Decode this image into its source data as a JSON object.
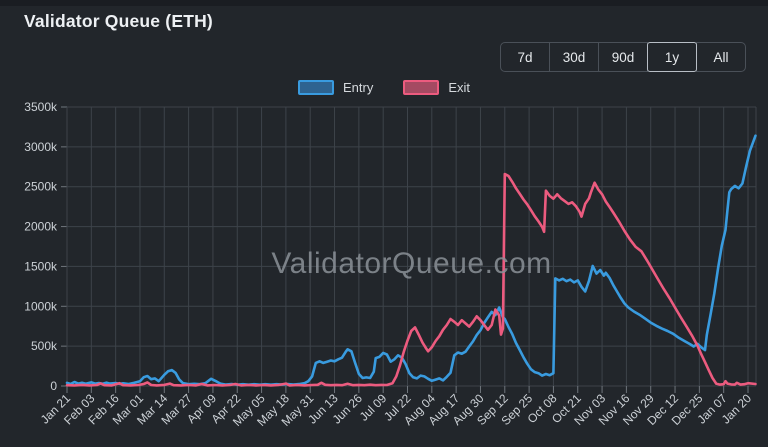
{
  "header": {
    "title": "Validator Queue (ETH)"
  },
  "range_buttons": {
    "options": [
      "7d",
      "30d",
      "90d",
      "1y",
      "All"
    ],
    "selected": "1y"
  },
  "watermark": "ValidatorQueue.com",
  "chart_data": {
    "type": "line",
    "title": "Validator Queue (ETH)",
    "unit": "thousands of ETH (k)",
    "grid": true,
    "legend_position": "top-center",
    "ylim": [
      0,
      3500
    ],
    "ytick_step": 500,
    "ytick_labels": [
      "0",
      "500k",
      "1000k",
      "1500k",
      "2000k",
      "2500k",
      "3000k",
      "3500k"
    ],
    "x_tick_interval_days": 13,
    "x_domain_days": [
      0,
      368
    ],
    "x_labels": [
      "Jan 21",
      "Feb 03",
      "Feb 16",
      "Mar 01",
      "Mar 14",
      "Mar 27",
      "Apr 09",
      "Apr 22",
      "May 05",
      "May 18",
      "May 31",
      "Jun 13",
      "Jun 26",
      "Jul 09",
      "Jul 22",
      "Aug 04",
      "Aug 17",
      "Aug 30",
      "Sep 12",
      "Sep 25",
      "Oct 08",
      "Oct 21",
      "Nov 03",
      "Nov 16",
      "Nov 29",
      "Dec 12",
      "Dec 25",
      "Jan 07",
      "Jan 20"
    ],
    "colors": {
      "background": "#22262b",
      "grid": "#3d434a",
      "tick": "#6f757c",
      "tick_text": "#ccd1d6",
      "watermark": "#8b9198",
      "entry": "#399bdf",
      "exit": "#ec5b7f"
    },
    "series": [
      {
        "name": "Entry",
        "color": "#399bdf",
        "swatch_fill": "#2e6390",
        "points": [
          [
            0,
            40
          ],
          [
            2,
            25
          ],
          [
            4,
            50
          ],
          [
            6,
            30
          ],
          [
            8,
            40
          ],
          [
            10,
            28
          ],
          [
            13,
            45
          ],
          [
            15,
            30
          ],
          [
            17,
            38
          ],
          [
            19,
            28
          ],
          [
            21,
            42
          ],
          [
            23,
            30
          ],
          [
            26,
            38
          ],
          [
            28,
            26
          ],
          [
            30,
            34
          ],
          [
            33,
            25
          ],
          [
            36,
            40
          ],
          [
            39,
            60
          ],
          [
            41,
            110
          ],
          [
            43,
            125
          ],
          [
            45,
            85
          ],
          [
            47,
            95
          ],
          [
            49,
            60
          ],
          [
            52,
            140
          ],
          [
            54,
            185
          ],
          [
            56,
            200
          ],
          [
            58,
            165
          ],
          [
            60,
            80
          ],
          [
            62,
            35
          ],
          [
            65,
            22
          ],
          [
            68,
            28
          ],
          [
            71,
            22
          ],
          [
            74,
            35
          ],
          [
            77,
            90
          ],
          [
            80,
            55
          ],
          [
            82,
            30
          ],
          [
            85,
            18
          ],
          [
            88,
            24
          ],
          [
            91,
            16
          ],
          [
            94,
            22
          ],
          [
            97,
            16
          ],
          [
            100,
            22
          ],
          [
            103,
            16
          ],
          [
            106,
            22
          ],
          [
            109,
            16
          ],
          [
            112,
            22
          ],
          [
            115,
            18
          ],
          [
            118,
            24
          ],
          [
            121,
            18
          ],
          [
            124,
            24
          ],
          [
            127,
            35
          ],
          [
            129,
            60
          ],
          [
            131,
            120
          ],
          [
            133,
            290
          ],
          [
            135,
            310
          ],
          [
            137,
            290
          ],
          [
            139,
            305
          ],
          [
            141,
            320
          ],
          [
            143,
            310
          ],
          [
            145,
            335
          ],
          [
            147,
            355
          ],
          [
            149,
            430
          ],
          [
            150,
            460
          ],
          [
            152,
            435
          ],
          [
            154,
            290
          ],
          [
            156,
            150
          ],
          [
            158,
            100
          ],
          [
            160,
            108
          ],
          [
            162,
            100
          ],
          [
            164,
            180
          ],
          [
            165,
            350
          ],
          [
            167,
            365
          ],
          [
            169,
            415
          ],
          [
            171,
            395
          ],
          [
            173,
            305
          ],
          [
            175,
            335
          ],
          [
            177,
            385
          ],
          [
            179,
            355
          ],
          [
            181,
            275
          ],
          [
            183,
            160
          ],
          [
            185,
            110
          ],
          [
            187,
            95
          ],
          [
            189,
            130
          ],
          [
            191,
            120
          ],
          [
            193,
            90
          ],
          [
            195,
            65
          ],
          [
            197,
            80
          ],
          [
            199,
            95
          ],
          [
            201,
            70
          ],
          [
            203,
            115
          ],
          [
            205,
            165
          ],
          [
            207,
            385
          ],
          [
            209,
            420
          ],
          [
            211,
            405
          ],
          [
            213,
            430
          ],
          [
            215,
            495
          ],
          [
            217,
            560
          ],
          [
            219,
            640
          ],
          [
            221,
            700
          ],
          [
            223,
            790
          ],
          [
            225,
            860
          ],
          [
            227,
            930
          ],
          [
            229,
            890
          ],
          [
            231,
            985
          ],
          [
            233,
            860
          ],
          [
            234,
            840
          ],
          [
            236,
            740
          ],
          [
            238,
            650
          ],
          [
            240,
            540
          ],
          [
            242,
            450
          ],
          [
            244,
            360
          ],
          [
            246,
            280
          ],
          [
            248,
            210
          ],
          [
            250,
            175
          ],
          [
            252,
            160
          ],
          [
            254,
            130
          ],
          [
            256,
            150
          ],
          [
            258,
            135
          ],
          [
            260,
            160
          ],
          [
            261,
            1350
          ],
          [
            263,
            1325
          ],
          [
            265,
            1345
          ],
          [
            267,
            1315
          ],
          [
            269,
            1335
          ],
          [
            271,
            1300
          ],
          [
            273,
            1325
          ],
          [
            275,
            1245
          ],
          [
            277,
            1185
          ],
          [
            279,
            1320
          ],
          [
            281,
            1505
          ],
          [
            283,
            1410
          ],
          [
            285,
            1455
          ],
          [
            287,
            1385
          ],
          [
            288,
            1420
          ],
          [
            290,
            1355
          ],
          [
            292,
            1265
          ],
          [
            294,
            1185
          ],
          [
            296,
            1105
          ],
          [
            298,
            1035
          ],
          [
            300,
            985
          ],
          [
            303,
            935
          ],
          [
            306,
            895
          ],
          [
            309,
            845
          ],
          [
            312,
            795
          ],
          [
            315,
            755
          ],
          [
            318,
            720
          ],
          [
            321,
            690
          ],
          [
            324,
            655
          ],
          [
            327,
            605
          ],
          [
            330,
            565
          ],
          [
            333,
            525
          ],
          [
            335,
            495
          ],
          [
            337,
            530
          ],
          [
            339,
            485
          ],
          [
            341,
            450
          ],
          [
            342,
            640
          ],
          [
            344,
            900
          ],
          [
            346,
            1160
          ],
          [
            348,
            1480
          ],
          [
            350,
            1760
          ],
          [
            352,
            1960
          ],
          [
            353,
            2200
          ],
          [
            354,
            2430
          ],
          [
            355,
            2470
          ],
          [
            357,
            2510
          ],
          [
            359,
            2480
          ],
          [
            361,
            2540
          ],
          [
            363,
            2750
          ],
          [
            365,
            2950
          ],
          [
            368,
            3140
          ]
        ]
      },
      {
        "name": "Exit",
        "color": "#ec5b7f",
        "swatch_fill": "#a54a62",
        "points": [
          [
            0,
            10
          ],
          [
            4,
            8
          ],
          [
            8,
            14
          ],
          [
            12,
            8
          ],
          [
            16,
            12
          ],
          [
            18,
            32
          ],
          [
            20,
            10
          ],
          [
            24,
            8
          ],
          [
            28,
            35
          ],
          [
            30,
            10
          ],
          [
            34,
            8
          ],
          [
            38,
            12
          ],
          [
            41,
            25
          ],
          [
            43,
            45
          ],
          [
            45,
            12
          ],
          [
            48,
            8
          ],
          [
            52,
            14
          ],
          [
            55,
            30
          ],
          [
            57,
            10
          ],
          [
            61,
            8
          ],
          [
            65,
            12
          ],
          [
            69,
            8
          ],
          [
            72,
            25
          ],
          [
            75,
            8
          ],
          [
            79,
            12
          ],
          [
            83,
            8
          ],
          [
            87,
            12
          ],
          [
            90,
            25
          ],
          [
            93,
            8
          ],
          [
            97,
            12
          ],
          [
            101,
            8
          ],
          [
            105,
            12
          ],
          [
            109,
            8
          ],
          [
            113,
            12
          ],
          [
            117,
            30
          ],
          [
            119,
            8
          ],
          [
            123,
            12
          ],
          [
            127,
            8
          ],
          [
            131,
            12
          ],
          [
            134,
            15
          ],
          [
            136,
            40
          ],
          [
            138,
            15
          ],
          [
            141,
            10
          ],
          [
            144,
            14
          ],
          [
            147,
            10
          ],
          [
            150,
            28
          ],
          [
            153,
            10
          ],
          [
            156,
            14
          ],
          [
            159,
            10
          ],
          [
            162,
            16
          ],
          [
            165,
            10
          ],
          [
            168,
            14
          ],
          [
            171,
            12
          ],
          [
            174,
            35
          ],
          [
            176,
            120
          ],
          [
            178,
            260
          ],
          [
            180,
            430
          ],
          [
            182,
            570
          ],
          [
            184,
            690
          ],
          [
            186,
            735
          ],
          [
            188,
            645
          ],
          [
            190,
            545
          ],
          [
            192,
            470
          ],
          [
            193,
            435
          ],
          [
            195,
            485
          ],
          [
            197,
            565
          ],
          [
            199,
            625
          ],
          [
            201,
            705
          ],
          [
            203,
            765
          ],
          [
            205,
            840
          ],
          [
            207,
            805
          ],
          [
            209,
            765
          ],
          [
            211,
            825
          ],
          [
            213,
            785
          ],
          [
            215,
            745
          ],
          [
            217,
            805
          ],
          [
            219,
            875
          ],
          [
            221,
            825
          ],
          [
            223,
            765
          ],
          [
            225,
            705
          ],
          [
            227,
            765
          ],
          [
            229,
            960
          ],
          [
            231,
            885
          ],
          [
            232,
            645
          ],
          [
            233,
            720
          ],
          [
            234,
            2660
          ],
          [
            236,
            2635
          ],
          [
            238,
            2560
          ],
          [
            240,
            2480
          ],
          [
            242,
            2410
          ],
          [
            244,
            2340
          ],
          [
            246,
            2280
          ],
          [
            248,
            2205
          ],
          [
            250,
            2130
          ],
          [
            252,
            2065
          ],
          [
            254,
            1995
          ],
          [
            255,
            1935
          ],
          [
            256,
            2450
          ],
          [
            258,
            2385
          ],
          [
            260,
            2350
          ],
          [
            262,
            2405
          ],
          [
            264,
            2355
          ],
          [
            266,
            2320
          ],
          [
            268,
            2285
          ],
          [
            270,
            2305
          ],
          [
            272,
            2255
          ],
          [
            274,
            2185
          ],
          [
            275,
            2125
          ],
          [
            277,
            2285
          ],
          [
            279,
            2355
          ],
          [
            280,
            2425
          ],
          [
            282,
            2550
          ],
          [
            284,
            2465
          ],
          [
            286,
            2405
          ],
          [
            288,
            2315
          ],
          [
            290,
            2245
          ],
          [
            292,
            2175
          ],
          [
            295,
            2065
          ],
          [
            298,
            1945
          ],
          [
            301,
            1835
          ],
          [
            304,
            1745
          ],
          [
            307,
            1690
          ],
          [
            310,
            1575
          ],
          [
            313,
            1455
          ],
          [
            316,
            1335
          ],
          [
            319,
            1215
          ],
          [
            322,
            1105
          ],
          [
            325,
            985
          ],
          [
            328,
            865
          ],
          [
            331,
            750
          ],
          [
            334,
            635
          ],
          [
            337,
            505
          ],
          [
            339,
            400
          ],
          [
            341,
            300
          ],
          [
            343,
            200
          ],
          [
            345,
            100
          ],
          [
            347,
            30
          ],
          [
            349,
            18
          ],
          [
            351,
            22
          ],
          [
            352,
            60
          ],
          [
            353,
            30
          ],
          [
            355,
            20
          ],
          [
            357,
            18
          ],
          [
            358,
            40
          ],
          [
            360,
            18
          ],
          [
            362,
            22
          ],
          [
            364,
            35
          ],
          [
            368,
            25
          ]
        ]
      }
    ]
  }
}
